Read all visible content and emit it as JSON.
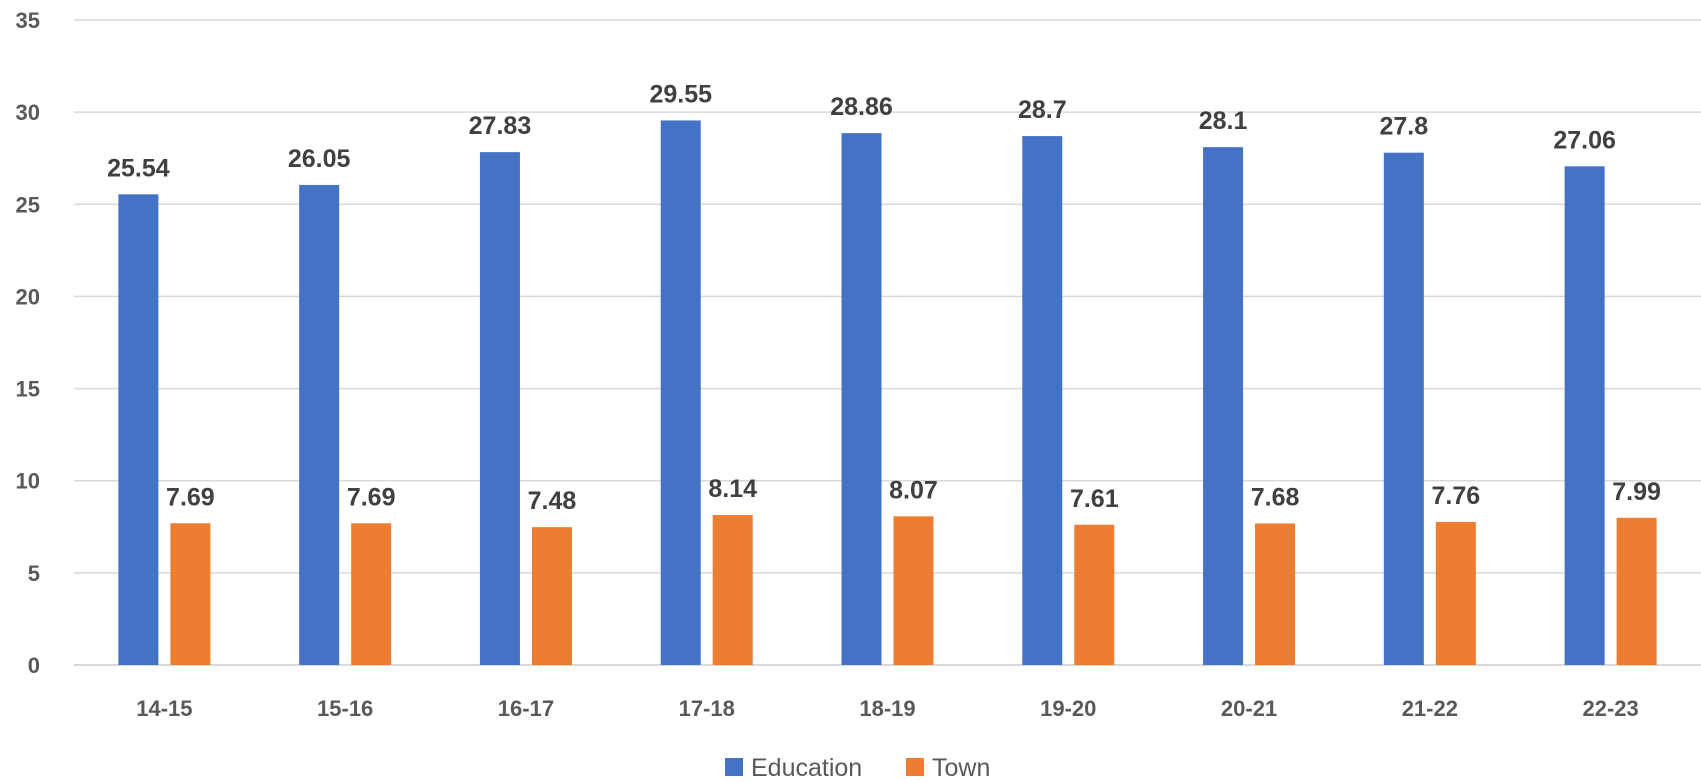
{
  "chart_data": {
    "type": "bar",
    "categories": [
      "14-15",
      "15-16",
      "16-17",
      "17-18",
      "18-19",
      "19-20",
      "20-21",
      "21-22",
      "22-23"
    ],
    "series": [
      {
        "name": "Education",
        "color": "#4472C4",
        "values": [
          25.54,
          26.05,
          27.83,
          29.55,
          28.86,
          28.7,
          28.1,
          27.8,
          27.06
        ]
      },
      {
        "name": "Town",
        "color": "#ED7D31",
        "values": [
          7.69,
          7.69,
          7.48,
          8.14,
          8.07,
          7.61,
          7.68,
          7.76,
          7.99
        ]
      }
    ],
    "value_labels": [
      [
        "25.54",
        "26.05",
        "27.83",
        "29.55",
        "28.86",
        "28.7",
        "28.1",
        "27.8",
        "27.06"
      ],
      [
        "7.69",
        "7.69",
        "7.48",
        "8.14",
        "8.07",
        "7.61",
        "7.68",
        "7.76",
        "7.99"
      ]
    ],
    "y_ticks": [
      "0",
      "5",
      "10",
      "15",
      "20",
      "25",
      "30",
      "35"
    ],
    "ylim": [
      0,
      35
    ],
    "grid": true,
    "legend_position": "bottom",
    "title": "",
    "xlabel": "",
    "ylabel": ""
  }
}
